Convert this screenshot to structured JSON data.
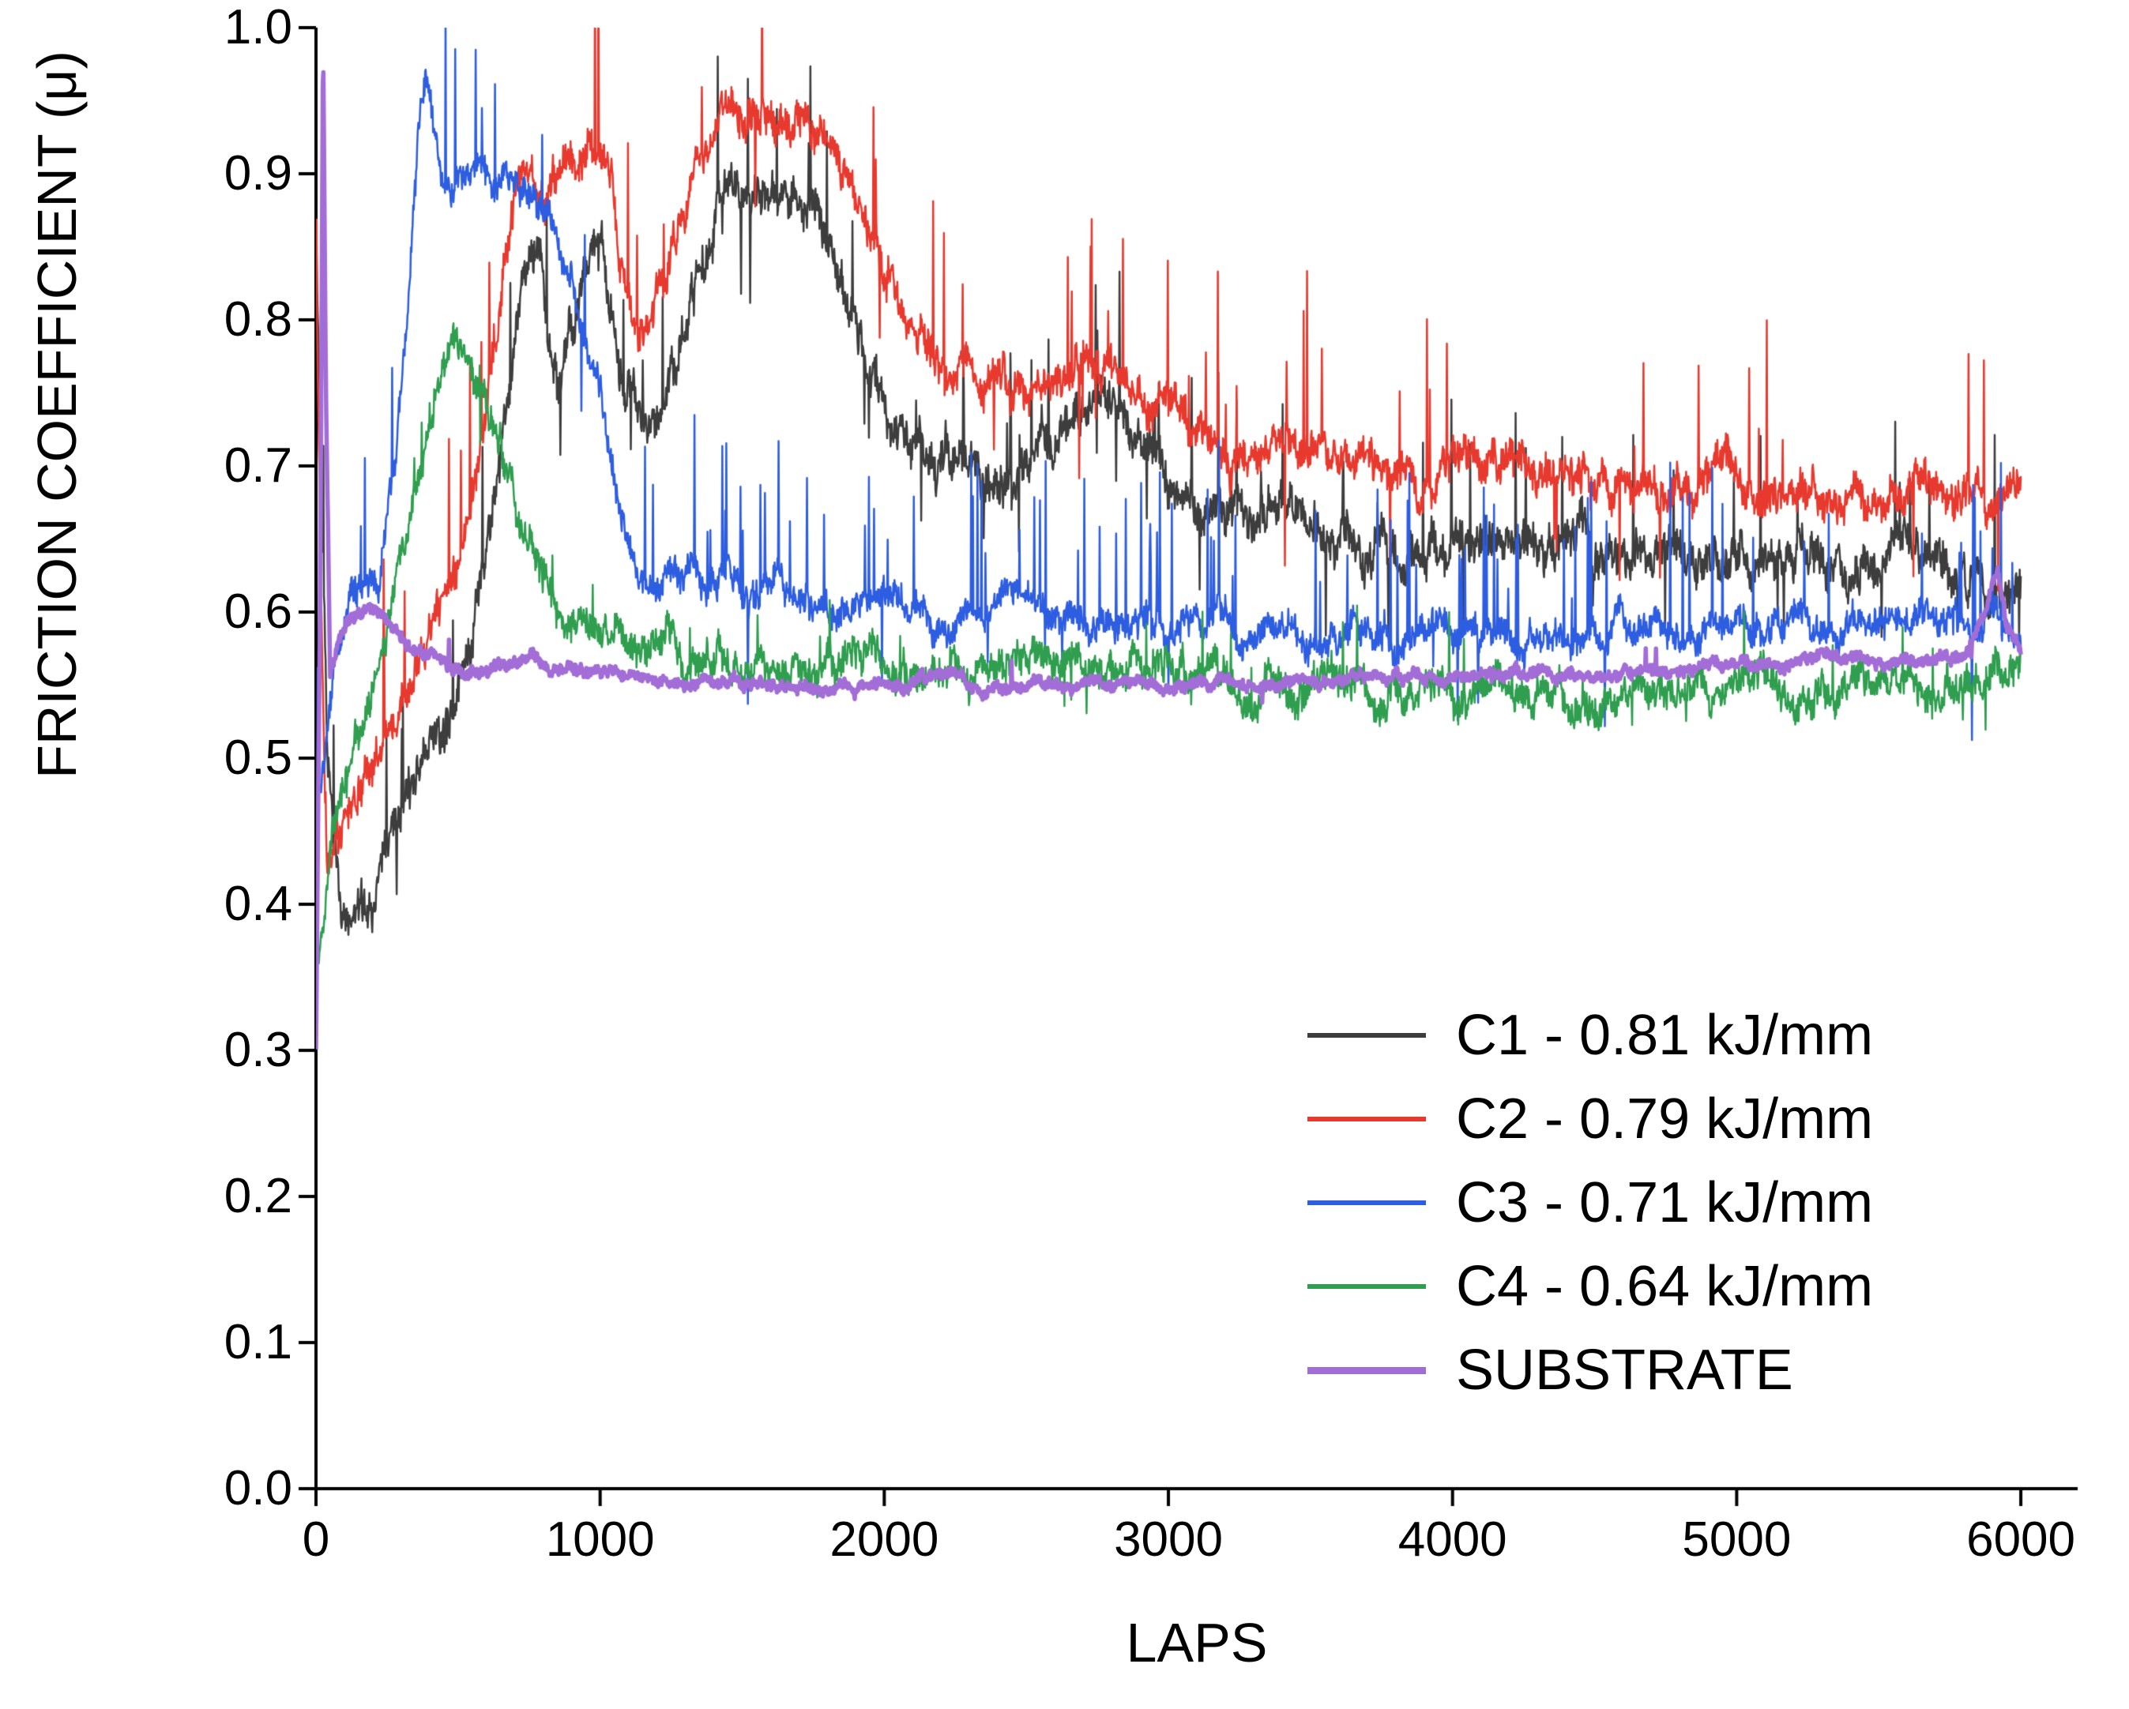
{
  "chart_data": {
    "type": "line",
    "title": "",
    "xlabel": "LAPS",
    "ylabel": "FRICTION COEFFICIENT (μ)",
    "xlim": [
      0,
      6200
    ],
    "ylim": [
      0.0,
      1.0
    ],
    "x_ticks": [
      0,
      1000,
      2000,
      3000,
      4000,
      5000,
      6000
    ],
    "y_ticks": [
      0.0,
      0.1,
      0.2,
      0.3,
      0.4,
      0.5,
      0.6,
      0.7,
      0.8,
      0.9,
      1.0
    ],
    "grid": false,
    "legend_position": "bottom-right",
    "axis_color": "#000000",
    "series": [
      {
        "name": "C1 - 0.81 kJ/mm",
        "color": "#3d3d3d",
        "line_width": 2.5,
        "noise": 0.011,
        "spike_prob": 0.025,
        "spike_amp": 0.1,
        "up_bias": 0.7,
        "seed": 7,
        "keypoints": [
          [
            0,
            0.87
          ],
          [
            15,
            0.72
          ],
          [
            40,
            0.5
          ],
          [
            80,
            0.39
          ],
          [
            120,
            0.38
          ],
          [
            180,
            0.4
          ],
          [
            250,
            0.44
          ],
          [
            320,
            0.47
          ],
          [
            400,
            0.5
          ],
          [
            480,
            0.53
          ],
          [
            550,
            0.58
          ],
          [
            620,
            0.66
          ],
          [
            680,
            0.76
          ],
          [
            730,
            0.84
          ],
          [
            780,
            0.86
          ],
          [
            820,
            0.8
          ],
          [
            860,
            0.78
          ],
          [
            900,
            0.82
          ],
          [
            950,
            0.85
          ],
          [
            1000,
            0.86
          ],
          [
            1040,
            0.8
          ],
          [
            1090,
            0.74
          ],
          [
            1150,
            0.74
          ],
          [
            1250,
            0.78
          ],
          [
            1350,
            0.83
          ],
          [
            1450,
            0.87
          ],
          [
            1550,
            0.9
          ],
          [
            1650,
            0.89
          ],
          [
            1750,
            0.87
          ],
          [
            1850,
            0.82
          ],
          [
            1950,
            0.77
          ],
          [
            2050,
            0.73
          ],
          [
            2150,
            0.71
          ],
          [
            2250,
            0.7
          ],
          [
            2350,
            0.69
          ],
          [
            2450,
            0.7
          ],
          [
            2550,
            0.72
          ],
          [
            2650,
            0.73
          ],
          [
            2750,
            0.75
          ],
          [
            2820,
            0.74
          ],
          [
            2900,
            0.71
          ],
          [
            3000,
            0.69
          ],
          [
            3100,
            0.68
          ],
          [
            3200,
            0.67
          ],
          [
            3400,
            0.66
          ],
          [
            3600,
            0.655
          ],
          [
            3800,
            0.645
          ],
          [
            4000,
            0.65
          ],
          [
            4200,
            0.65
          ],
          [
            4400,
            0.645
          ],
          [
            4600,
            0.64
          ],
          [
            4800,
            0.645
          ],
          [
            5000,
            0.64
          ],
          [
            5200,
            0.635
          ],
          [
            5400,
            0.63
          ],
          [
            5600,
            0.632
          ],
          [
            5800,
            0.63
          ],
          [
            6000,
            0.628
          ]
        ]
      },
      {
        "name": "C2 - 0.79 kJ/mm",
        "color": "#e8392e",
        "line_width": 2.5,
        "noise": 0.01,
        "spike_prob": 0.02,
        "spike_amp": 0.12,
        "up_bias": 0.85,
        "seed": 13,
        "keypoints": [
          [
            0,
            0.84
          ],
          [
            20,
            0.6
          ],
          [
            40,
            0.44
          ],
          [
            100,
            0.45
          ],
          [
            180,
            0.49
          ],
          [
            260,
            0.52
          ],
          [
            340,
            0.56
          ],
          [
            420,
            0.6
          ],
          [
            500,
            0.63
          ],
          [
            560,
            0.68
          ],
          [
            620,
            0.77
          ],
          [
            670,
            0.85
          ],
          [
            710,
            0.9
          ],
          [
            750,
            0.92
          ],
          [
            790,
            0.89
          ],
          [
            830,
            0.89
          ],
          [
            880,
            0.9
          ],
          [
            940,
            0.91
          ],
          [
            1000,
            0.92
          ],
          [
            1040,
            0.91
          ],
          [
            1080,
            0.84
          ],
          [
            1120,
            0.8
          ],
          [
            1170,
            0.8
          ],
          [
            1230,
            0.83
          ],
          [
            1300,
            0.87
          ],
          [
            1380,
            0.92
          ],
          [
            1450,
            0.94
          ],
          [
            1550,
            0.94
          ],
          [
            1650,
            0.94
          ],
          [
            1720,
            0.95
          ],
          [
            1780,
            0.94
          ],
          [
            1850,
            0.91
          ],
          [
            1920,
            0.88
          ],
          [
            2000,
            0.84
          ],
          [
            2080,
            0.81
          ],
          [
            2160,
            0.78
          ],
          [
            2250,
            0.77
          ],
          [
            2350,
            0.76
          ],
          [
            2450,
            0.75
          ],
          [
            2550,
            0.76
          ],
          [
            2650,
            0.76
          ],
          [
            2750,
            0.77
          ],
          [
            2850,
            0.75
          ],
          [
            2950,
            0.73
          ],
          [
            3100,
            0.72
          ],
          [
            3300,
            0.715
          ],
          [
            3500,
            0.71
          ],
          [
            3700,
            0.705
          ],
          [
            3900,
            0.7
          ],
          [
            4100,
            0.7
          ],
          [
            4300,
            0.695
          ],
          [
            4500,
            0.69
          ],
          [
            4700,
            0.69
          ],
          [
            4900,
            0.688
          ],
          [
            5100,
            0.685
          ],
          [
            5300,
            0.682
          ],
          [
            5500,
            0.68
          ],
          [
            5700,
            0.68
          ],
          [
            5900,
            0.678
          ],
          [
            6000,
            0.676
          ]
        ]
      },
      {
        "name": "C3 - 0.71 kJ/mm",
        "color": "#2d5de0",
        "line_width": 2.5,
        "noise": 0.008,
        "spike_prob": 0.04,
        "spike_amp": 0.11,
        "up_bias": 0.9,
        "seed": 29,
        "keypoints": [
          [
            0,
            0.47
          ],
          [
            60,
            0.55
          ],
          [
            120,
            0.6
          ],
          [
            180,
            0.62
          ],
          [
            230,
            0.63
          ],
          [
            280,
            0.7
          ],
          [
            320,
            0.8
          ],
          [
            360,
            0.93
          ],
          [
            385,
            0.98
          ],
          [
            410,
            0.94
          ],
          [
            440,
            0.89
          ],
          [
            480,
            0.88
          ],
          [
            520,
            0.9
          ],
          [
            560,
            0.91
          ],
          [
            620,
            0.9
          ],
          [
            700,
            0.89
          ],
          [
            780,
            0.885
          ],
          [
            840,
            0.86
          ],
          [
            900,
            0.82
          ],
          [
            960,
            0.77
          ],
          [
            1020,
            0.71
          ],
          [
            1080,
            0.66
          ],
          [
            1140,
            0.63
          ],
          [
            1200,
            0.62
          ],
          [
            1300,
            0.63
          ],
          [
            1400,
            0.62
          ],
          [
            1500,
            0.615
          ],
          [
            1700,
            0.61
          ],
          [
            1900,
            0.605
          ],
          [
            2100,
            0.6
          ],
          [
            2400,
            0.6
          ],
          [
            2700,
            0.595
          ],
          [
            3000,
            0.59
          ],
          [
            3400,
            0.59
          ],
          [
            3800,
            0.585
          ],
          [
            4200,
            0.585
          ],
          [
            4600,
            0.585
          ],
          [
            5000,
            0.59
          ],
          [
            5400,
            0.59
          ],
          [
            5700,
            0.592
          ],
          [
            5900,
            0.6
          ],
          [
            6000,
            0.585
          ]
        ]
      },
      {
        "name": "C4 - 0.64 kJ/mm",
        "color": "#2f9e4f",
        "line_width": 2.5,
        "noise": 0.009,
        "spike_prob": 0.012,
        "spike_amp": 0.05,
        "up_bias": 0.6,
        "seed": 41,
        "keypoints": [
          [
            0,
            0.34
          ],
          [
            60,
            0.46
          ],
          [
            120,
            0.51
          ],
          [
            180,
            0.54
          ],
          [
            240,
            0.58
          ],
          [
            300,
            0.64
          ],
          [
            360,
            0.7
          ],
          [
            420,
            0.75
          ],
          [
            470,
            0.78
          ],
          [
            520,
            0.775
          ],
          [
            570,
            0.75
          ],
          [
            620,
            0.72
          ],
          [
            670,
            0.7
          ],
          [
            720,
            0.67
          ],
          [
            770,
            0.645
          ],
          [
            820,
            0.62
          ],
          [
            880,
            0.605
          ],
          [
            950,
            0.59
          ],
          [
            1050,
            0.578
          ],
          [
            1150,
            0.572
          ],
          [
            1250,
            0.58
          ],
          [
            1350,
            0.57
          ],
          [
            1450,
            0.562
          ],
          [
            1550,
            0.565
          ],
          [
            1700,
            0.567
          ],
          [
            1900,
            0.562
          ],
          [
            2100,
            0.56
          ],
          [
            2300,
            0.56
          ],
          [
            2500,
            0.563
          ],
          [
            2700,
            0.565
          ],
          [
            2900,
            0.56
          ],
          [
            3100,
            0.553
          ],
          [
            3300,
            0.55
          ],
          [
            3500,
            0.55
          ],
          [
            3700,
            0.545
          ],
          [
            3900,
            0.547
          ],
          [
            4100,
            0.548
          ],
          [
            4300,
            0.545
          ],
          [
            4500,
            0.543
          ],
          [
            4700,
            0.546
          ],
          [
            4900,
            0.548
          ],
          [
            5100,
            0.55
          ],
          [
            5300,
            0.548
          ],
          [
            5500,
            0.55
          ],
          [
            5700,
            0.55
          ],
          [
            5850,
            0.548
          ],
          [
            5950,
            0.555
          ],
          [
            6000,
            0.56
          ]
        ]
      },
      {
        "name": "SUBSTRATE",
        "color": "#a26dd6",
        "line_width": 5.5,
        "noise": 0.003,
        "spike_prob": 0.003,
        "spike_amp": 0.025,
        "up_bias": 0.6,
        "seed": 53,
        "keypoints": [
          [
            0,
            0.3
          ],
          [
            15,
            0.62
          ],
          [
            25,
            1.0
          ],
          [
            35,
            0.75
          ],
          [
            50,
            0.56
          ],
          [
            80,
            0.585
          ],
          [
            120,
            0.6
          ],
          [
            170,
            0.605
          ],
          [
            220,
            0.6
          ],
          [
            280,
            0.59
          ],
          [
            340,
            0.578
          ],
          [
            400,
            0.57
          ],
          [
            460,
            0.563
          ],
          [
            520,
            0.56
          ],
          [
            600,
            0.562
          ],
          [
            700,
            0.565
          ],
          [
            800,
            0.562
          ],
          [
            900,
            0.56
          ],
          [
            1000,
            0.558
          ],
          [
            1200,
            0.555
          ],
          [
            1400,
            0.552
          ],
          [
            1600,
            0.55
          ],
          [
            1800,
            0.55
          ],
          [
            2000,
            0.55
          ],
          [
            2300,
            0.549
          ],
          [
            2600,
            0.549
          ],
          [
            2900,
            0.55
          ],
          [
            3200,
            0.551
          ],
          [
            3500,
            0.553
          ],
          [
            3800,
            0.555
          ],
          [
            4100,
            0.556
          ],
          [
            4400,
            0.558
          ],
          [
            4700,
            0.56
          ],
          [
            5000,
            0.563
          ],
          [
            5300,
            0.566
          ],
          [
            5600,
            0.568
          ],
          [
            5800,
            0.57
          ],
          [
            5880,
            0.6
          ],
          [
            5920,
            0.625
          ],
          [
            5950,
            0.585
          ],
          [
            6000,
            0.572
          ]
        ]
      }
    ]
  }
}
